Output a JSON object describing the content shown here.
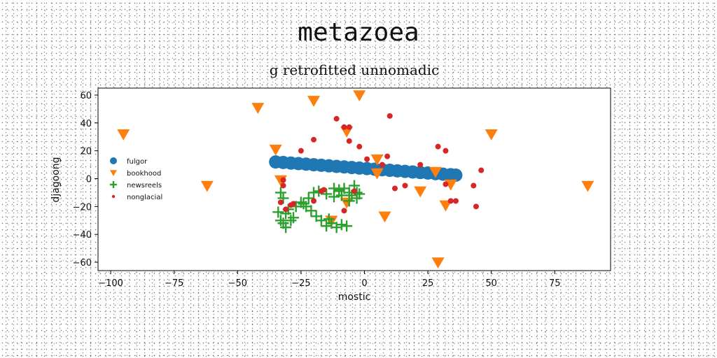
{
  "chart_data": {
    "type": "scatter",
    "suptitle": "metazoea",
    "title": "g retrofitted unnomadic",
    "xlabel": "mostic",
    "ylabel": "djagoong",
    "xlim": [
      -105,
      97
    ],
    "ylim": [
      -66,
      65
    ],
    "xticks": [
      -100,
      -75,
      -50,
      -25,
      0,
      25,
      50,
      75
    ],
    "xtick_labels": [
      "−100",
      "−75",
      "−50",
      "−25",
      "0",
      "25",
      "50",
      "75"
    ],
    "yticks": [
      -60,
      -40,
      -20,
      0,
      20,
      40,
      60
    ],
    "ytick_labels": [
      "−60",
      "−40",
      "−20",
      "0",
      "20",
      "40",
      "60"
    ],
    "grid": false,
    "legend_position": "center-left",
    "series": [
      {
        "name": "fulgor",
        "marker": "circle",
        "color": "#1f77b4",
        "x": [
          -35,
          -32,
          -29,
          -26,
          -23,
          -20,
          -17,
          -14,
          -11,
          -8,
          -5,
          -2,
          1,
          4,
          7,
          10,
          13,
          16,
          19,
          22,
          25,
          28,
          31,
          34,
          36
        ],
        "y": [
          12,
          11.6,
          11.2,
          10.8,
          10.4,
          10,
          9.6,
          9.2,
          8.8,
          8.4,
          8,
          7.6,
          7.2,
          6.8,
          6.4,
          6,
          5.6,
          5.2,
          4.8,
          4.4,
          4,
          3.6,
          3.2,
          2.8,
          2.5
        ]
      },
      {
        "name": "bookhood",
        "marker": "triangle-down",
        "color": "#ff7f0e",
        "x": [
          -95,
          -42,
          -20,
          -2,
          50,
          -35,
          -7,
          5,
          5,
          28,
          -62,
          -33,
          22,
          34,
          88,
          32,
          8,
          -13,
          -7,
          29
        ],
        "y": [
          32,
          51,
          56,
          60,
          32,
          21,
          34,
          14,
          4,
          5,
          -5,
          -1,
          -9,
          -4,
          -5,
          -19,
          -27,
          -30,
          -17,
          -60
        ]
      },
      {
        "name": "newsreels",
        "marker": "plus",
        "color": "#2ca02c",
        "x": [
          -33,
          -32,
          -30,
          -31,
          -28,
          -32,
          -24,
          -22,
          -20,
          -18,
          -15,
          -12,
          -10,
          -8,
          -6,
          -5,
          -4,
          -3,
          -2,
          -7,
          -9,
          -11,
          -13,
          -15,
          -17,
          -19,
          -21,
          -23,
          -25,
          -27,
          -29,
          -31,
          -33,
          -34,
          -10,
          -6,
          -9,
          -12,
          -3,
          -14
        ],
        "y": [
          -10,
          -14,
          -22,
          -25,
          -28,
          -32,
          -18,
          -14,
          -10,
          -9,
          -11,
          -13,
          -9,
          -7,
          -10,
          -12,
          -5,
          -14,
          -11,
          -34,
          -33,
          -35,
          -32,
          -34,
          -30,
          -27,
          -23,
          -20,
          -17,
          -20,
          -30,
          -35,
          -30,
          -24,
          -8,
          -16,
          -12,
          -7,
          -10,
          -29
        ]
      },
      {
        "name": "nonglacial",
        "marker": "dot",
        "color": "#d62728",
        "x": [
          -32,
          -32,
          -33,
          -31,
          -29,
          -28,
          -25,
          -20,
          -20,
          -16,
          -11,
          -8,
          -6,
          -6,
          -4,
          -2,
          1,
          7,
          9,
          10,
          12,
          16,
          22,
          29,
          32,
          34,
          36,
          43,
          44,
          46,
          -8,
          -17,
          32
        ],
        "y": [
          -1,
          -5,
          -17,
          -22,
          -19,
          -18,
          20,
          28,
          -16,
          -8,
          43,
          37,
          37,
          27,
          -9,
          23,
          14,
          10,
          16,
          45,
          -7,
          -5,
          10,
          23,
          20,
          -16,
          -16,
          -5,
          -20,
          6,
          -23,
          -9,
          -4
        ]
      }
    ]
  }
}
